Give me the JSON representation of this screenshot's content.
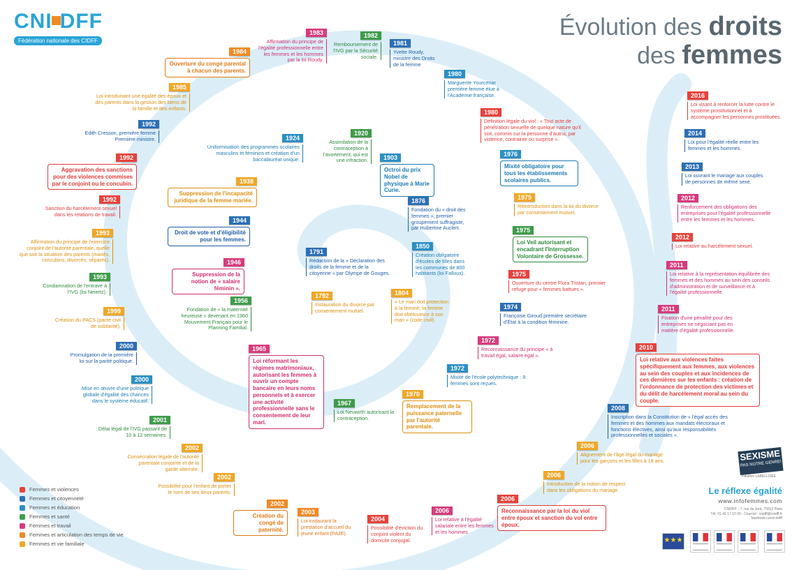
{
  "logo": {
    "name": "CNIDFF",
    "part1": "CNI",
    "part2": "DFF",
    "subtitle": "Fédération nationale des CIDFF"
  },
  "title": {
    "line1_prefix": "Évolution des ",
    "line1_bold": "droits",
    "line2_prefix": "des ",
    "line2_bold": "femmes"
  },
  "colors": {
    "violence": "#e8413b",
    "citizen": "#2c6fb5",
    "education": "#2b8fc4",
    "health": "#3f9b4a",
    "work": "#d83a7c",
    "articulation": "#f08a24",
    "family": "#f0a726",
    "spiral": "#dbeef8"
  },
  "legend": [
    {
      "label": "Femmes et violences",
      "category": "violence"
    },
    {
      "label": "Femmes et citoyenneté",
      "category": "citizen"
    },
    {
      "label": "Femmes et éducation",
      "category": "education"
    },
    {
      "label": "Femmes et santé",
      "category": "health"
    },
    {
      "label": "Femmes et travail",
      "category": "work"
    },
    {
      "label": "Femmes et articulation des temps de vie",
      "category": "articulation"
    },
    {
      "label": "Femmes et vie familiale",
      "category": "family"
    }
  ],
  "events": [
    {
      "year": "1983",
      "category": "work",
      "text": "Affirmation du principe de l'égalité professionnelle entre les femmes et les hommes par la loi Roudy."
    },
    {
      "year": "1982",
      "category": "health",
      "text": "Remboursement de l'IVG par la Sécurité sociale."
    },
    {
      "year": "1981",
      "category": "citizen",
      "text": "Yvette Roudy, ministre des Droits de la femme"
    },
    {
      "year": "1984",
      "category": "articulation",
      "text": "Ouverture du congé parental à chacun des parents."
    },
    {
      "year": "1980",
      "category": "education",
      "text": "Marguerite Yourcenar première femme élue à l'Académie française."
    },
    {
      "year": "1985",
      "category": "family",
      "text": "Loi introduisant une égalité des époux et des parents dans la gestion des biens de la famille et des enfants."
    },
    {
      "year": "1980",
      "category": "violence",
      "text": "Définition légale du viol : « Tout acte de pénétration sexuelle de quelque nature qu'il soit, commis sur la personne d'autrui, par violence, contrainte ou surprise »."
    },
    {
      "year": "1992",
      "category": "citizen",
      "text": "Edith Cresson, première femme Première ministre."
    },
    {
      "year": "1924",
      "category": "education",
      "text": "Uniformisation des programmes scolaires masculins et féminins et création d'un baccalauréat unique."
    },
    {
      "year": "1920",
      "category": "health",
      "text": "Assimilation de la contraception à l'avortement, qui est une infraction."
    },
    {
      "year": "1903",
      "category": "education",
      "text": "Octroi du prix Nobel de physique à Marie Curie."
    },
    {
      "year": "1976",
      "category": "education",
      "text": "Mixité obligatoire pour tous les établissements scolaires publics."
    },
    {
      "year": "1992",
      "category": "violence",
      "text": "Aggravation des sanctions pour des violences commises par le conjoint ou le concubin."
    },
    {
      "year": "1938",
      "category": "family",
      "text": "Suppression de l'incapacité juridique de la femme mariée."
    },
    {
      "year": "1975",
      "category": "family",
      "text": "Réintroduction dans la loi du divorce par consentement mutuel."
    },
    {
      "year": "1876",
      "category": "citizen",
      "text": "Fondation du « droit des femmes », premier groupement suffragiste, par Hubertine Auclert."
    },
    {
      "year": "1992",
      "category": "violence",
      "text": "Sanction du harcèlement sexuel dans les relations de travail."
    },
    {
      "year": "1944",
      "category": "citizen",
      "text": "Droit de vote et d'éligibilité pour les femmes."
    },
    {
      "year": "1975",
      "category": "health",
      "text": "Loi Veil autorisant et encadrant l'Interruption Volontaire de Grossesse."
    },
    {
      "year": "1993",
      "category": "family",
      "text": "Affirmation du principe de l'exercice conjoint de l'autorité parentale, quelle que soit la situation des parents (mariés, concubins, divorcés, séparés)."
    },
    {
      "year": "1850",
      "category": "education",
      "text": "Création obligatoire d'écoles de filles dans les communes de 800 habitants (loi Falloux)."
    },
    {
      "year": "1791",
      "category": "citizen",
      "text": "Rédaction de la « Déclaration des droits de la femme et de la citoyenne » par Olympe de Gouges."
    },
    {
      "year": "1946",
      "category": "work",
      "text": "Suppression de la notion de « salaire féminin »."
    },
    {
      "year": "1975",
      "category": "violence",
      "text": "Ouverture du centre Flora Tristan, premier refuge pour « femmes battues »."
    },
    {
      "year": "1993",
      "category": "health",
      "text": "Condamnation de l'entrave à l'IVG (loi Neiertz)."
    },
    {
      "year": "1792",
      "category": "family",
      "text": "Instauration du divorce par consentement mutuel."
    },
    {
      "year": "1804",
      "category": "family",
      "text": "« Le mari doit protection à la femme, la femme doit obéissance à son mari » (code civil)."
    },
    {
      "year": "1974",
      "category": "citizen",
      "text": "Françoise Giroud première secrétaire d'État à la condition féminine."
    },
    {
      "year": "1956",
      "category": "health",
      "text": "Fondation de « la maternité heureuse » devenant en 1960 Mouvement Français pour le Planning Familial."
    },
    {
      "year": "1999",
      "category": "family",
      "text": "Création du PACS (pacte civil de solidarité)."
    },
    {
      "year": "1972",
      "category": "work",
      "text": "Reconnaissance du principe « à travail égal, salaire égal »."
    },
    {
      "year": "2000",
      "category": "citizen",
      "text": "Promulgation de la première loi sur la parité politique."
    },
    {
      "year": "1965",
      "category": "work",
      "text": "Loi réformant les régimes matrimoniaux, autorisant les femmes à ouvrir un compte bancaire en leurs noms personnels et à exercer une activité professionnelle sans le consentement de leur mari."
    },
    {
      "year": "1972",
      "category": "education",
      "text": "Mixité de l'école polytechnique : 8 femmes sont reçues."
    },
    {
      "year": "2000",
      "category": "education",
      "text": "Mise en œuvre d'une politique globale d'égalité des chances dans le système éducatif."
    },
    {
      "year": "1970",
      "category": "family",
      "text": "Remplacement de la puissance paternelle par l'autorité parentale."
    },
    {
      "year": "1967",
      "category": "health",
      "text": "Loi Neuwirth autorisant la contraception."
    },
    {
      "year": "2001",
      "category": "health",
      "text": "Délai légal de l'IVG passant de 10 à 12 semaines."
    },
    {
      "year": "2002",
      "category": "family",
      "text": "Consécration légale de l'autorité parentale conjointe et de la garde alternée."
    },
    {
      "year": "2002",
      "category": "family",
      "text": "Possibilité pour l'enfant de porter le nom de ses deux parents."
    },
    {
      "year": "2002",
      "category": "articulation",
      "text": "Création du congé de paternité."
    },
    {
      "year": "2003",
      "category": "articulation",
      "text": "Loi instaurant la prestation d'accueil du jeune enfant (PAJE)."
    },
    {
      "year": "2004",
      "category": "violence",
      "text": "Possibilité d'éviction du conjoint violent du domicile conjugal."
    },
    {
      "year": "2006",
      "category": "work",
      "text": "Loi relative à l'égalité salariale entre les femmes et les hommes."
    },
    {
      "year": "2006",
      "category": "violence",
      "text": "Reconnaissance par la loi du viol entre époux et sanction du vol entre époux."
    },
    {
      "year": "2006",
      "category": "family",
      "text": "Introduction de la notion de respect dans les obligations du mariage."
    },
    {
      "year": "2006",
      "category": "family",
      "text": "Alignement de l'âge légal du mariage pour les garçons et les filles à 18 ans."
    },
    {
      "year": "2008",
      "category": "citizen",
      "text": "Inscription dans la Constitution de « l'égal accès des femmes et des hommes aux mandats électoraux et fonctions électives, ainsi qu'aux responsabilités professionnelles et sociales »."
    },
    {
      "year": "2010",
      "category": "violence",
      "text": "Loi relative aux violences faites spécifiquement aux femmes, aux violences au sein des couples et aux incidences de ces dernières sur les enfants : création de l'ordonnance de protection des victimes et du délit de harcèlement moral au sein du couple."
    },
    {
      "year": "2011",
      "category": "work",
      "text": "Fixation d'une pénalité pour des entreprises ne négociant pas en matière d'égalité professionnelle."
    },
    {
      "year": "2011",
      "category": "work",
      "text": "Loi relative à la représentation équilibrée des femmes et des hommes au sein des conseils d'administration et de surveillance et à l'égalité professionnelle."
    },
    {
      "year": "2012",
      "category": "violence",
      "text": "Loi relative au harcèlement sexuel."
    },
    {
      "year": "2012",
      "category": "work",
      "text": "Renforcement des obligations des entreprises pour l'égalité professionnelle entre les femmes et les hommes."
    },
    {
      "year": "2013",
      "category": "citizen",
      "text": "Loi ouvrant le mariage aux couples de personnes de même sexe."
    },
    {
      "year": "2014",
      "category": "citizen",
      "text": "Loi pour l'égalité réelle entre les femmes et les hommes."
    },
    {
      "year": "2016",
      "category": "violence",
      "text": "Loi visant à renforcer la lutte contre le système prostitutionnel et à accompagner les personnes prostituées."
    }
  ],
  "campaign": {
    "sexisme": "SEXISME",
    "slogan": "PAS NOTRE GENRE!",
    "label_line": "initiative LABELLISÉE"
  },
  "footer": {
    "reflexe": "Le réflexe égalité",
    "website": "www.infofemmes.com",
    "address": "CNIDFF - 7, rue du Jura, 75013 Paris",
    "contact": "Tél. 01 42 17 12 00 - Courriel : cnidff@cnidff.fr",
    "facebook": "facebook.com/cnidff"
  }
}
